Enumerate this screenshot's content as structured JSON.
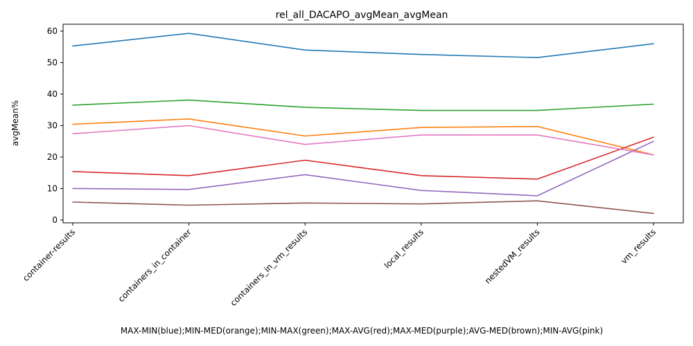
{
  "chart_data": {
    "type": "line",
    "title": "rel_all_DACAPO_avgMean_avgMean",
    "xlabel": "MAX-MIN(blue);MIN-MED(orange);MIN-MAX(green);MAX-AVG(red);MAX-MED(purple);AVG-MED(brown);MIN-AVG(pink)",
    "ylabel": "avgMean%",
    "categories": [
      "container-results",
      "containers_in_container",
      "containers_in_vm_results",
      "local_results",
      "nestedVM_results",
      "vm_results"
    ],
    "ylim": [
      -0.9,
      62.2
    ],
    "yticks": [
      0,
      10,
      20,
      30,
      40,
      50,
      60
    ],
    "grid": false,
    "series": [
      {
        "color": "#1f77b4",
        "values": [
          55.3,
          59.3,
          54.0,
          52.6,
          51.6,
          56.0
        ]
      },
      {
        "color": "#ff7f0e",
        "values": [
          30.4,
          32.1,
          26.7,
          29.4,
          29.7,
          20.7
        ]
      },
      {
        "color": "#2ca02c",
        "values": [
          36.5,
          38.1,
          35.8,
          34.8,
          34.8,
          36.8
        ]
      },
      {
        "color": "#d62728",
        "values": [
          15.4,
          14.1,
          19.0,
          14.1,
          13.0,
          26.3
        ]
      },
      {
        "color": "#9467bd",
        "values": [
          10.0,
          9.7,
          14.4,
          9.4,
          7.7,
          25.0
        ]
      },
      {
        "color": "#8c564b",
        "values": [
          5.7,
          4.7,
          5.4,
          5.1,
          6.1,
          2.1
        ]
      },
      {
        "color": "#e377c2",
        "values": [
          27.4,
          30.0,
          24.0,
          27.0,
          27.0,
          20.7
        ]
      }
    ]
  }
}
